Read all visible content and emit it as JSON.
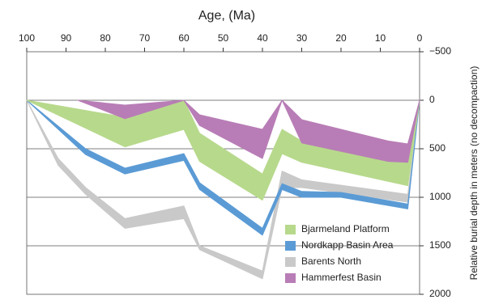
{
  "chart_data": {
    "type": "band",
    "x_label": "Age, (Ma)",
    "y_label": "Relative burial depth in meters (no decompaction)",
    "xlim": [
      100,
      0
    ],
    "xticks": [
      100,
      90,
      80,
      70,
      60,
      50,
      40,
      30,
      20,
      10,
      0
    ],
    "ylim": [
      -500,
      2000
    ],
    "yticks": [
      {
        "value": -500,
        "label": "−500"
      },
      0,
      500,
      1000,
      1500,
      2000
    ],
    "y_inverted": true,
    "grid": true,
    "legend": "lower right",
    "series": [
      {
        "name": "Barents North",
        "color": "#c9c9c9",
        "x": [
          100,
          92,
          85,
          75,
          60,
          56,
          40,
          35,
          30,
          3,
          0
        ],
        "top": [
          0,
          600,
          900,
          1220,
          1090,
          1500,
          1760,
          730,
          820,
          970,
          0
        ],
        "bottom": [
          0,
          670,
          970,
          1320,
          1220,
          1540,
          1840,
          900,
          900,
          1050,
          0
        ]
      },
      {
        "name": "Nordkapp Basin Area",
        "color": "#5b9bd5",
        "x": [
          100,
          85,
          75,
          60,
          56,
          40,
          35,
          30,
          20,
          3,
          0
        ],
        "top": [
          0,
          500,
          700,
          550,
          850,
          1320,
          860,
          940,
          950,
          1070,
          0
        ],
        "bottom": [
          0,
          560,
          760,
          620,
          920,
          1390,
          920,
          1000,
          1000,
          1120,
          0
        ]
      },
      {
        "name": "Bjarmeland Platform",
        "color": "#b7d98c",
        "x": [
          100,
          75,
          60,
          56,
          40,
          35,
          30,
          3,
          0
        ],
        "top": [
          0,
          175,
          0,
          340,
          760,
          300,
          420,
          630,
          0
        ],
        "bottom": [
          0,
          480,
          300,
          630,
          1030,
          550,
          640,
          880,
          0
        ]
      },
      {
        "name": "Hammerfest Basin",
        "color": "#b87db6",
        "x": [
          87,
          75,
          60,
          56,
          40,
          35,
          30,
          8,
          3,
          0
        ],
        "top": [
          0,
          50,
          0,
          150,
          300,
          0,
          200,
          420,
          450,
          0
        ],
        "bottom": [
          0,
          190,
          0,
          260,
          600,
          0,
          440,
          630,
          640,
          0
        ]
      }
    ],
    "legend_order": [
      2,
      1,
      0,
      3
    ]
  }
}
